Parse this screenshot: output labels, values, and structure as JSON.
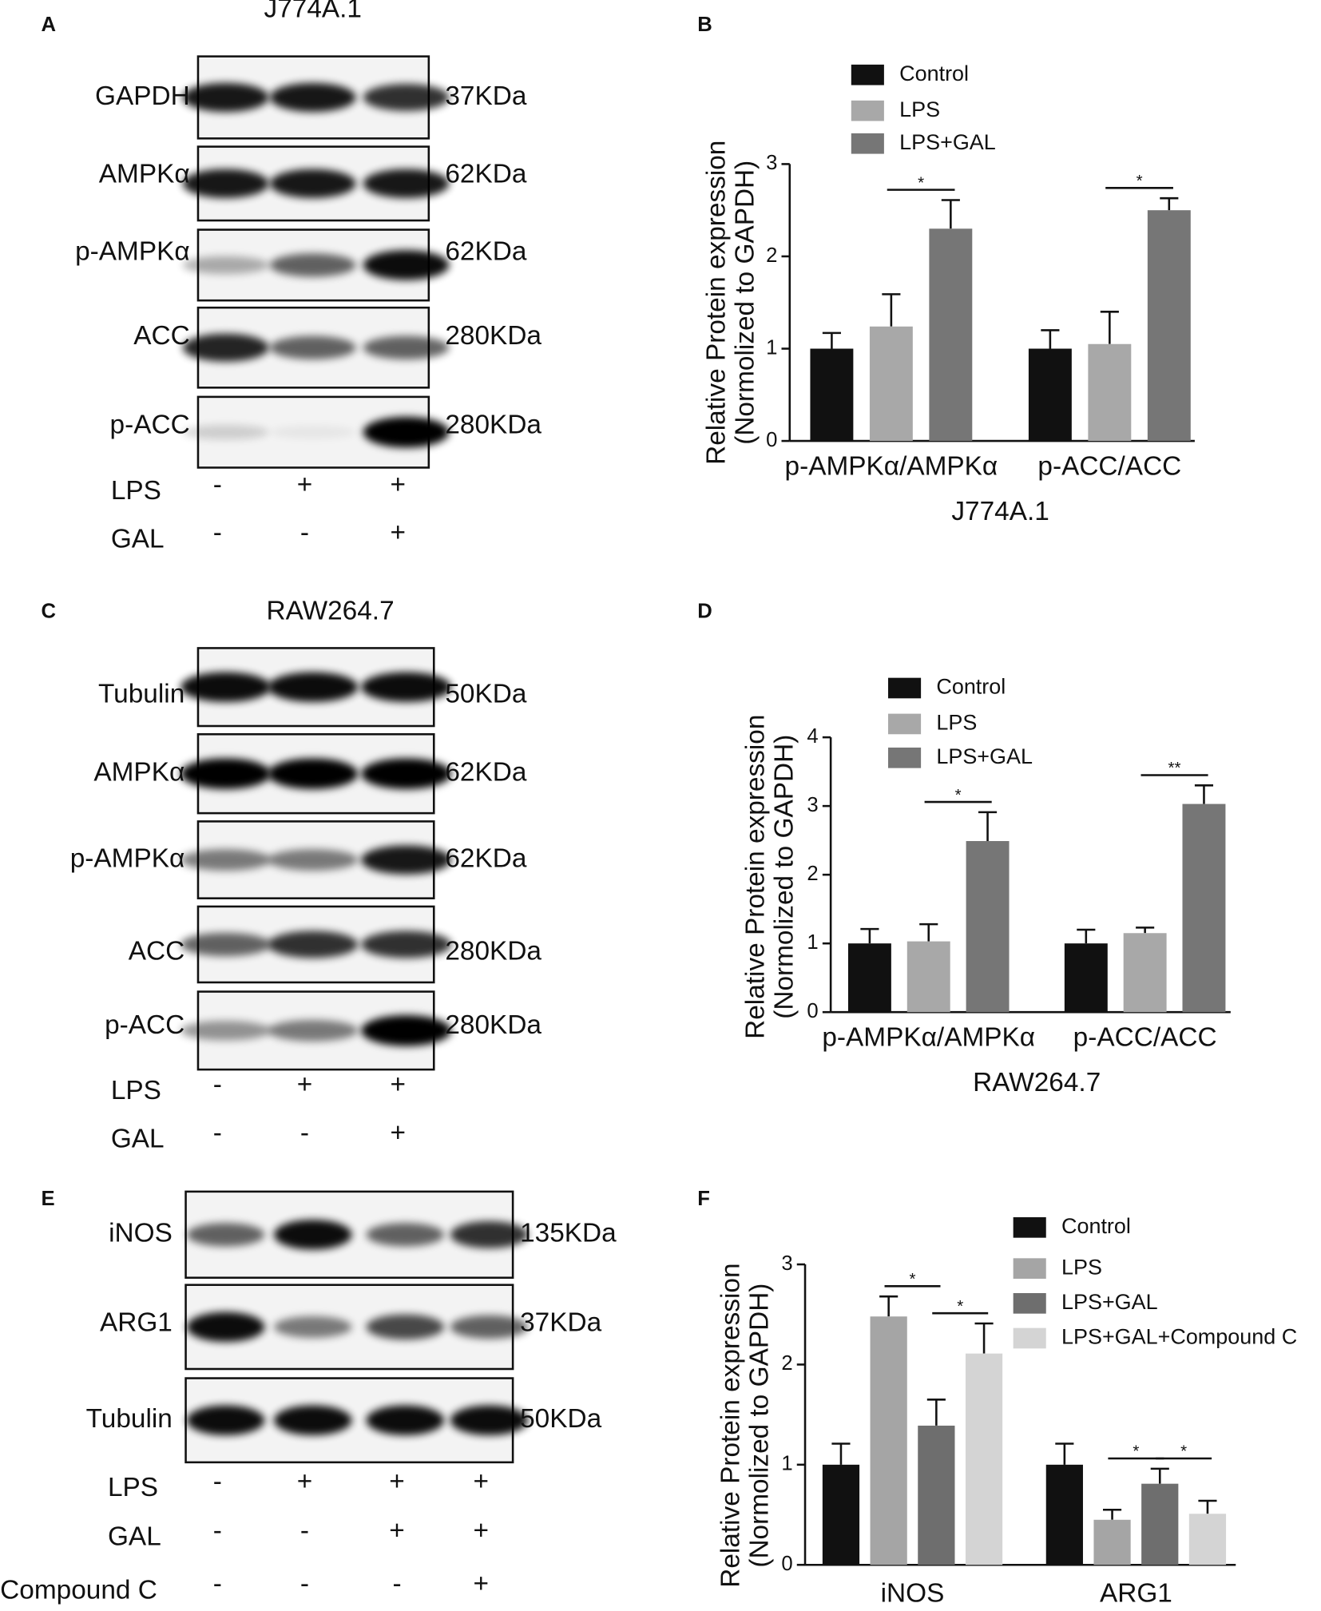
{
  "blots": [
    {
      "letter": "A",
      "title": "J774A.1",
      "bands": [
        {
          "label": "GAPDH",
          "size": "37KDa"
        },
        {
          "label": "AMPKα",
          "size": "62KDa"
        },
        {
          "label": "p-AMPKα",
          "size": "62KDa"
        },
        {
          "label": "ACC",
          "size": "280KDa"
        },
        {
          "label": "p-ACC",
          "size": "280KDa"
        }
      ],
      "conditions": [
        {
          "label": "LPS",
          "marks": [
            "-",
            "+",
            "+"
          ]
        },
        {
          "label": "GAL",
          "marks": [
            "-",
            "-",
            "+"
          ]
        }
      ]
    },
    {
      "letter": "C",
      "title": "RAW264.7",
      "bands": [
        {
          "label": "Tubulin",
          "size": "50KDa"
        },
        {
          "label": "AMPKα",
          "size": "62KDa"
        },
        {
          "label": "p-AMPKα",
          "size": "62KDa"
        },
        {
          "label": "ACC",
          "size": "280KDa"
        },
        {
          "label": "p-ACC",
          "size": "280KDa"
        }
      ],
      "conditions": [
        {
          "label": "LPS",
          "marks": [
            "-",
            "+",
            "+"
          ]
        },
        {
          "label": "GAL",
          "marks": [
            "-",
            "-",
            "+"
          ]
        }
      ]
    },
    {
      "letter": "E",
      "bands": [
        {
          "label": "iNOS",
          "size": "135KDa"
        },
        {
          "label": "ARG1",
          "size": "37KDa"
        },
        {
          "label": "Tubulin",
          "size": "50KDa"
        }
      ],
      "conditions": [
        {
          "label": "LPS",
          "marks": [
            "-",
            "+",
            "+",
            "+"
          ]
        },
        {
          "label": "GAL",
          "marks": [
            "-",
            "-",
            "+",
            "+"
          ]
        },
        {
          "label": "Compound C",
          "marks": [
            "-",
            "-",
            "-",
            "+"
          ]
        }
      ]
    }
  ],
  "chart_data": [
    {
      "type": "bar",
      "letter": "B",
      "ylabel": [
        "Relative Protein expression",
        "(Normolized to GAPDH)"
      ],
      "xlabel": "J774A.1",
      "categories": [
        "p-AMPKα/AMPKα",
        "p-ACC/ACC"
      ],
      "series": [
        {
          "name": "Control",
          "color": "#111111",
          "values": [
            1,
            1
          ],
          "errors": [
            0.17,
            0.2
          ]
        },
        {
          "name": "LPS",
          "color": "#a8a8a8",
          "values": [
            1.24,
            1.05
          ],
          "errors": [
            0.35,
            0.35
          ]
        },
        {
          "name": "LPS+GAL",
          "color": "#767676",
          "values": [
            2.3,
            2.5
          ],
          "errors": [
            0.31,
            0.13
          ]
        }
      ],
      "ylim": [
        0,
        3
      ],
      "yticks": [
        0,
        1,
        2,
        3
      ],
      "significance": [
        {
          "label": "*",
          "category": "p-AMPKα/AMPKα",
          "between": [
            "LPS",
            "LPS+GAL"
          ]
        },
        {
          "label": "*",
          "category": "p-ACC/ACC",
          "between": [
            "LPS",
            "LPS+GAL"
          ]
        }
      ]
    },
    {
      "type": "bar",
      "letter": "D",
      "ylabel": [
        "Relative Protein expression",
        "(Normolized to GAPDH)"
      ],
      "xlabel": "RAW264.7",
      "categories": [
        "p-AMPKα/AMPKα",
        "p-ACC/ACC"
      ],
      "series": [
        {
          "name": "Control",
          "color": "#111111",
          "values": [
            1,
            1
          ],
          "errors": [
            0.21,
            0.2
          ]
        },
        {
          "name": "LPS",
          "color": "#a8a8a8",
          "values": [
            1.03,
            1.15
          ],
          "errors": [
            0.25,
            0.08
          ]
        },
        {
          "name": "LPS+GAL",
          "color": "#767676",
          "values": [
            2.49,
            3.03
          ],
          "errors": [
            0.42,
            0.27
          ]
        }
      ],
      "ylim": [
        0,
        4
      ],
      "yticks": [
        0,
        1,
        2,
        3,
        4
      ],
      "significance": [
        {
          "label": "*",
          "category": "p-AMPKα/AMPKα",
          "between": [
            "LPS",
            "LPS+GAL"
          ]
        },
        {
          "label": "**",
          "category": "p-ACC/ACC",
          "between": [
            "LPS",
            "LPS+GAL"
          ]
        }
      ]
    },
    {
      "type": "bar",
      "letter": "F",
      "ylabel": [
        "Relative Protein expression",
        "(Normolized to GAPDH)"
      ],
      "categories": [
        "iNOS",
        "ARG1"
      ],
      "series": [
        {
          "name": "Control",
          "color": "#111111",
          "values": [
            1,
            1
          ],
          "errors": [
            0.21,
            0.21
          ]
        },
        {
          "name": "LPS",
          "color": "#a5a5a5",
          "values": [
            2.48,
            0.45
          ],
          "errors": [
            0.2,
            0.1
          ]
        },
        {
          "name": "LPS+GAL",
          "color": "#6e6e6e",
          "values": [
            1.39,
            0.81
          ],
          "errors": [
            0.26,
            0.15
          ]
        },
        {
          "name": "LPS+GAL+Compound C",
          "color": "#d4d4d4",
          "values": [
            2.11,
            0.51
          ],
          "errors": [
            0.3,
            0.13
          ]
        }
      ],
      "ylim": [
        0,
        3
      ],
      "yticks": [
        0,
        1,
        2,
        3
      ],
      "significance": [
        {
          "label": "*",
          "category": "iNOS",
          "between": [
            "LPS",
            "LPS+GAL"
          ]
        },
        {
          "label": "*",
          "category": "iNOS",
          "between": [
            "LPS+GAL",
            "LPS+GAL+Compound C"
          ]
        },
        {
          "label": "*",
          "category": "ARG1",
          "between": [
            "LPS",
            "LPS+GAL"
          ]
        },
        {
          "label": "*",
          "category": "ARG1",
          "between": [
            "LPS+GAL",
            "LPS+GAL+Compound C"
          ]
        }
      ]
    }
  ]
}
